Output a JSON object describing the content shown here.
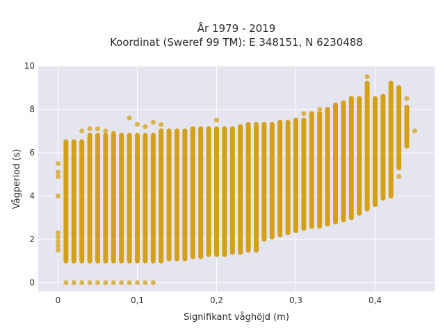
{
  "chart_data": {
    "type": "scatter",
    "title_line1": "År 1979 - 2019",
    "title_line2": "Koordinat (Sweref 99 TM): E 348151, N 6230488",
    "xlabel": "Signifikant våghöjd (m)",
    "ylabel": "Vågperiod (s)",
    "xlim": [
      -0.025,
      0.475
    ],
    "ylim": [
      -0.4,
      10.0
    ],
    "x_ticks": [
      0,
      0.1,
      0.2,
      0.3,
      0.4
    ],
    "x_tick_labels": [
      "0",
      "0,1",
      "0,2",
      "0,3",
      "0,4"
    ],
    "y_ticks": [
      0,
      2,
      4,
      6,
      8,
      10
    ],
    "y_tick_labels": [
      "0",
      "2",
      "4",
      "6",
      "8",
      "10"
    ],
    "grid": true,
    "marker_color": "#D4A017",
    "plot_background": "#E5E5EF",
    "x_step": 0.01,
    "columns": [
      {
        "x": 0.0,
        "points": [
          4.0,
          4.9,
          5.1,
          5.5,
          1.5,
          1.7,
          1.9,
          2.1,
          2.3
        ]
      },
      {
        "x": 0.01,
        "range": [
          1.0,
          6.5
        ],
        "outliers": [
          0
        ]
      },
      {
        "x": 0.02,
        "range": [
          1.0,
          6.5
        ],
        "outliers": [
          0
        ]
      },
      {
        "x": 0.03,
        "range": [
          1.0,
          6.5
        ],
        "outliers": [
          0,
          7.0
        ]
      },
      {
        "x": 0.04,
        "range": [
          1.0,
          6.8
        ],
        "outliers": [
          0,
          7.1
        ]
      },
      {
        "x": 0.05,
        "range": [
          1.0,
          6.8
        ],
        "outliers": [
          0,
          7.1
        ]
      },
      {
        "x": 0.06,
        "range": [
          1.0,
          6.8
        ],
        "outliers": [
          0,
          7.0
        ]
      },
      {
        "x": 0.07,
        "range": [
          1.0,
          6.8
        ],
        "outliers": [
          0,
          6.9
        ]
      },
      {
        "x": 0.08,
        "range": [
          1.0,
          6.8
        ],
        "outliers": [
          0
        ]
      },
      {
        "x": 0.09,
        "range": [
          1.0,
          6.8
        ],
        "outliers": [
          0,
          7.6
        ]
      },
      {
        "x": 0.1,
        "range": [
          1.0,
          6.8
        ],
        "outliers": [
          0,
          7.3
        ]
      },
      {
        "x": 0.11,
        "range": [
          1.0,
          6.8
        ],
        "outliers": [
          0,
          7.2
        ]
      },
      {
        "x": 0.12,
        "range": [
          1.0,
          6.8
        ],
        "outliers": [
          0,
          7.4
        ]
      },
      {
        "x": 0.13,
        "range": [
          1.0,
          7.0
        ],
        "outliers": [
          7.3
        ]
      },
      {
        "x": 0.14,
        "range": [
          1.1,
          7.0
        ],
        "outliers": []
      },
      {
        "x": 0.15,
        "range": [
          1.1,
          7.0
        ],
        "outliers": []
      },
      {
        "x": 0.16,
        "range": [
          1.1,
          7.0
        ],
        "outliers": []
      },
      {
        "x": 0.17,
        "range": [
          1.2,
          7.1
        ],
        "outliers": []
      },
      {
        "x": 0.18,
        "range": [
          1.2,
          7.1
        ],
        "outliers": []
      },
      {
        "x": 0.19,
        "range": [
          1.3,
          7.1
        ],
        "outliers": []
      },
      {
        "x": 0.2,
        "range": [
          1.3,
          7.1
        ],
        "outliers": [
          7.5
        ]
      },
      {
        "x": 0.21,
        "range": [
          1.3,
          7.1
        ],
        "outliers": []
      },
      {
        "x": 0.22,
        "range": [
          1.4,
          7.1
        ],
        "outliers": []
      },
      {
        "x": 0.23,
        "range": [
          1.4,
          7.2
        ],
        "outliers": []
      },
      {
        "x": 0.24,
        "range": [
          1.5,
          7.3
        ],
        "outliers": []
      },
      {
        "x": 0.25,
        "range": [
          1.5,
          7.3
        ],
        "outliers": []
      },
      {
        "x": 0.26,
        "range": [
          2.0,
          7.3
        ],
        "outliers": []
      },
      {
        "x": 0.27,
        "range": [
          2.1,
          7.3
        ],
        "outliers": []
      },
      {
        "x": 0.28,
        "range": [
          2.2,
          7.4
        ],
        "outliers": []
      },
      {
        "x": 0.29,
        "range": [
          2.3,
          7.4
        ],
        "outliers": []
      },
      {
        "x": 0.3,
        "range": [
          2.4,
          7.5
        ],
        "outliers": []
      },
      {
        "x": 0.31,
        "range": [
          2.5,
          7.5
        ],
        "outliers": [
          7.8
        ]
      },
      {
        "x": 0.32,
        "range": [
          2.6,
          7.8
        ],
        "outliers": []
      },
      {
        "x": 0.33,
        "range": [
          2.6,
          7.8
        ],
        "outliers": [
          8.0
        ]
      },
      {
        "x": 0.34,
        "range": [
          2.7,
          8.0
        ],
        "outliers": []
      },
      {
        "x": 0.35,
        "range": [
          2.8,
          8.2
        ],
        "outliers": []
      },
      {
        "x": 0.36,
        "range": [
          2.9,
          8.3
        ],
        "outliers": []
      },
      {
        "x": 0.37,
        "range": [
          3.0,
          8.5
        ],
        "outliers": []
      },
      {
        "x": 0.38,
        "range": [
          3.2,
          8.5
        ],
        "outliers": []
      },
      {
        "x": 0.39,
        "range": [
          3.4,
          9.2
        ],
        "outliers": [
          9.5
        ]
      },
      {
        "x": 0.4,
        "range": [
          3.6,
          8.5
        ],
        "outliers": []
      },
      {
        "x": 0.41,
        "range": [
          3.9,
          8.6
        ],
        "outliers": []
      },
      {
        "x": 0.42,
        "range": [
          4.0,
          9.2
        ],
        "outliers": []
      },
      {
        "x": 0.43,
        "range": [
          5.3,
          9.0
        ],
        "outliers": [
          4.9
        ]
      },
      {
        "x": 0.44,
        "range": [
          6.3,
          8.1
        ],
        "outliers": [
          8.5
        ]
      },
      {
        "x": 0.45,
        "points": [
          7.0
        ]
      }
    ]
  }
}
